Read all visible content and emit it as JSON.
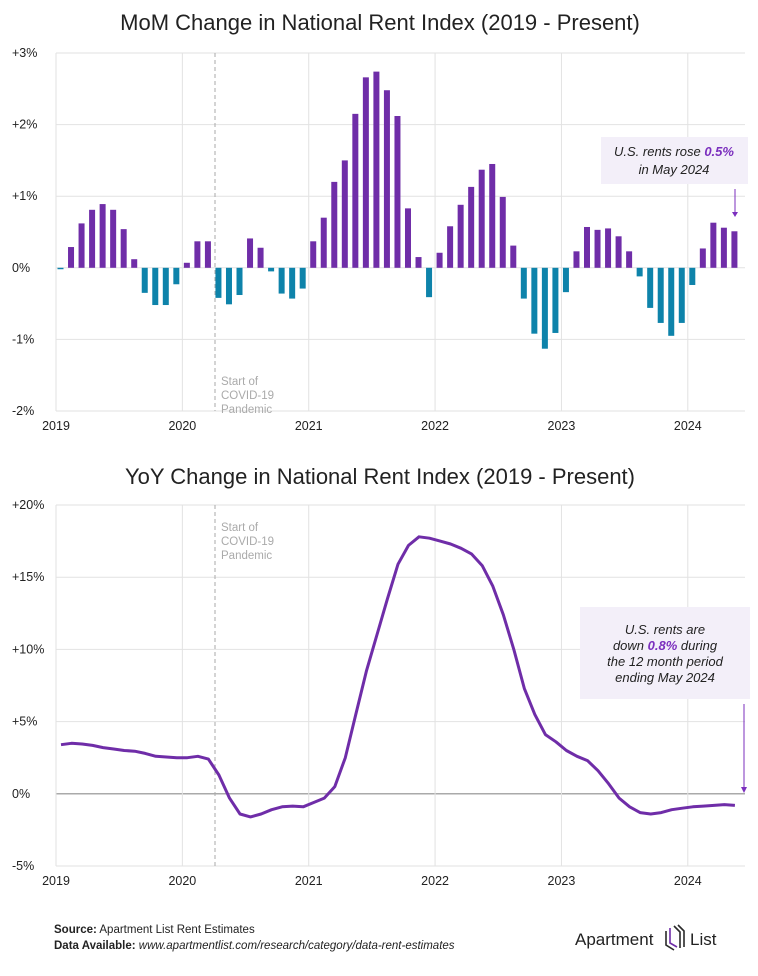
{
  "colors": {
    "positive": "#6f2da8",
    "negative": "#0e83aa",
    "grid": "#e2e2e2",
    "annotation_bg": "#f3eff9",
    "highlight": "#7b2fbe"
  },
  "chart_data": [
    {
      "type": "bar",
      "title": "MoM Change in National Rent Index (2019 - Present)",
      "xlabel": "",
      "ylabel": "",
      "ylim": [
        -2,
        3
      ],
      "grid": true,
      "y_tick_labels": [
        "+3%",
        "+2%",
        "+1%",
        "0%",
        "-1%",
        "-2%"
      ],
      "y_ticks": [
        3,
        2,
        1,
        0,
        -1,
        -2
      ],
      "x_tick_labels": [
        "2019",
        "2020",
        "2021",
        "2022",
        "2023",
        "2024"
      ],
      "start": "2019-01",
      "frequency": "monthly",
      "values": [
        -0.02,
        0.29,
        0.62,
        0.81,
        0.89,
        0.81,
        0.54,
        0.12,
        -0.35,
        -0.52,
        -0.52,
        -0.23,
        0.07,
        0.37,
        0.37,
        -0.42,
        -0.51,
        -0.38,
        0.41,
        0.28,
        -0.05,
        -0.36,
        -0.43,
        -0.29,
        0.37,
        0.7,
        1.2,
        1.5,
        2.15,
        2.66,
        2.74,
        2.48,
        2.12,
        0.83,
        0.15,
        -0.41,
        0.21,
        0.58,
        0.88,
        1.13,
        1.37,
        1.45,
        0.99,
        0.31,
        -0.43,
        -0.92,
        -1.13,
        -0.91,
        -0.34,
        0.23,
        0.57,
        0.53,
        0.55,
        0.44,
        0.23,
        -0.12,
        -0.56,
        -0.77,
        -0.95,
        -0.77,
        -0.24,
        0.27,
        0.63,
        0.56,
        0.51
      ],
      "covid_label": [
        "Start of",
        "COVID-19",
        "Pandemic"
      ],
      "annotation": {
        "pre": "U.S. rents rose ",
        "value": "0.5%",
        "line2": "in May 2024"
      }
    },
    {
      "type": "line",
      "title": "YoY Change in National Rent Index (2019 - Present)",
      "xlabel": "",
      "ylabel": "",
      "ylim": [
        -5,
        20
      ],
      "grid": true,
      "y_tick_labels": [
        "+20%",
        "+15%",
        "+10%",
        "+5%",
        "0%",
        "-5%"
      ],
      "y_ticks": [
        20,
        15,
        10,
        5,
        0,
        -5
      ],
      "x_tick_labels": [
        "2019",
        "2020",
        "2021",
        "2022",
        "2023",
        "2024"
      ],
      "start": "2019-01",
      "frequency": "monthly",
      "values": [
        3.4,
        3.5,
        3.45,
        3.35,
        3.2,
        3.1,
        3.0,
        2.95,
        2.8,
        2.6,
        2.55,
        2.5,
        2.5,
        2.6,
        2.4,
        1.3,
        -0.3,
        -1.4,
        -1.6,
        -1.4,
        -1.1,
        -0.9,
        -0.85,
        -0.9,
        -0.6,
        -0.3,
        0.5,
        2.5,
        5.5,
        8.5,
        11.0,
        13.5,
        15.9,
        17.2,
        17.8,
        17.7,
        17.5,
        17.3,
        17.0,
        16.6,
        15.8,
        14.4,
        12.4,
        10.0,
        7.3,
        5.5,
        4.1,
        3.6,
        3.0,
        2.6,
        2.3,
        1.6,
        0.7,
        -0.3,
        -0.9,
        -1.3,
        -1.4,
        -1.3,
        -1.1,
        -1.0,
        -0.9,
        -0.85,
        -0.8,
        -0.75,
        -0.8
      ],
      "covid_label": [
        "Start of",
        "COVID-19",
        "Pandemic"
      ],
      "annotation": {
        "line1": "U.S. rents are",
        "pre": "down ",
        "value": "0.8%",
        "post": " during",
        "line3": "the 12 month period",
        "line4": "ending May 2024"
      }
    }
  ],
  "footer": {
    "source_label": "Source:",
    "source_text": " Apartment List Rent Estimates",
    "data_label": "Data Available:",
    "data_text": " www.apartmentlist.com/research/category/data-rent-estimates",
    "logo_left": "Apartment",
    "logo_right": "List"
  }
}
